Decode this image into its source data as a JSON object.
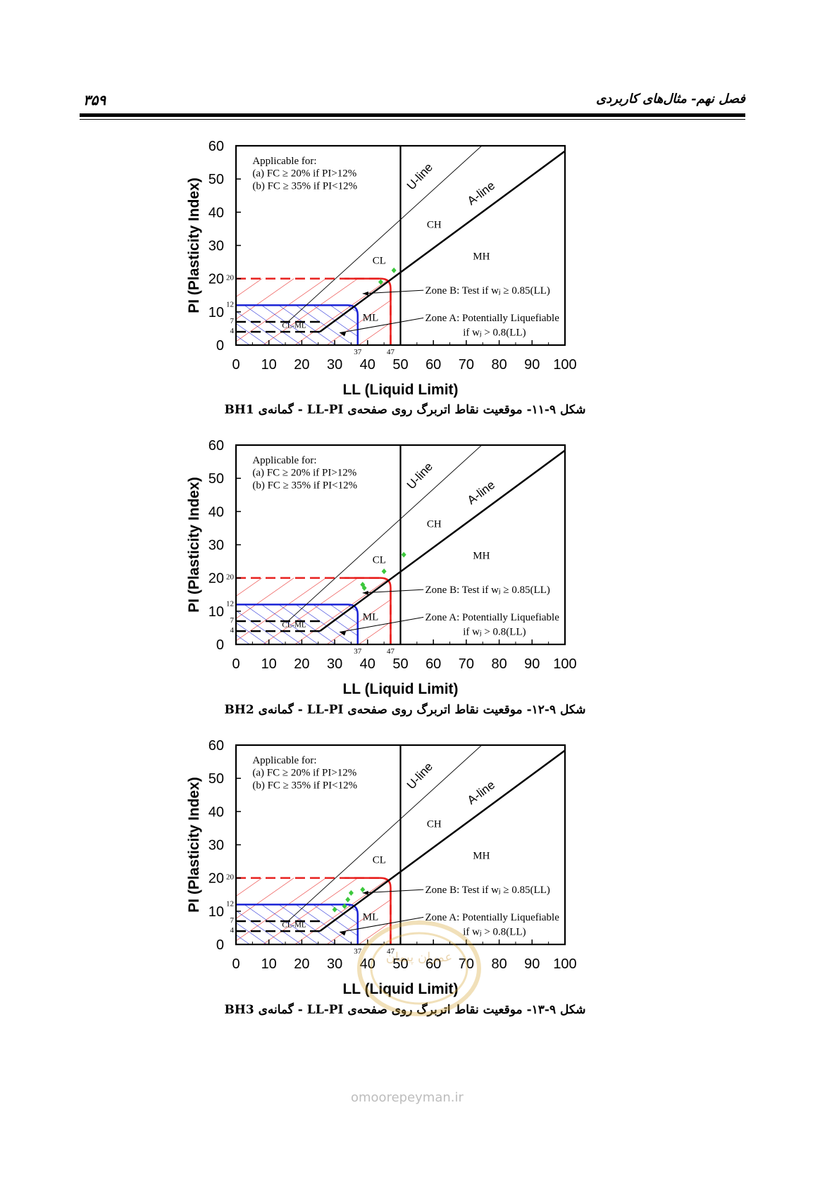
{
  "header": {
    "page_number": "۳۵۹",
    "chapter_title": "فصل نهم- مثال‌های کاربردی"
  },
  "figures": [
    {
      "caption": "شکل ۹-۱۱- موقعیت نقاط اتربرگ روی صفحه‌ی LL-PI - گمانه‌ی BH1",
      "points": [
        [
          44,
          19
        ],
        [
          48,
          22.5
        ]
      ]
    },
    {
      "caption": "شکل ۹-۱۲- موقعیت نقاط اتربرگ روی صفحه‌ی LL-PI - گمانه‌ی BH2",
      "points": [
        [
          39,
          17
        ],
        [
          38.5,
          18
        ],
        [
          45,
          22
        ],
        [
          51,
          27
        ]
      ]
    },
    {
      "caption": "شکل ۹-۱۳- موقعیت نقاط اتربرگ روی صفحه‌ی LL-PI - گمانه‌ی BH3",
      "points": [
        [
          30,
          10.5
        ],
        [
          33,
          11.5
        ],
        [
          34,
          13.5
        ],
        [
          35,
          15.5
        ],
        [
          38.5,
          16.5
        ]
      ]
    }
  ],
  "chart_data": {
    "type": "scatter",
    "xlabel": "LL (Liquid Limit)",
    "ylabel": "PI (Plasticity Index)",
    "xlim": [
      0,
      100
    ],
    "ylim": [
      0,
      60
    ],
    "xticks": [
      "0",
      "10",
      "20",
      "30",
      "40",
      "50",
      "60",
      "70",
      "80",
      "90",
      "100"
    ],
    "yticks": [
      "0",
      "10",
      "20",
      "30",
      "40",
      "50",
      "60"
    ],
    "ytick_small": [
      "4",
      "7",
      "12",
      "20"
    ],
    "xtick_small": [
      "37",
      "47"
    ],
    "applicable": {
      "title": "Applicable for:",
      "a": "(a)    FC ≥ 20% if PI>12%",
      "b": "(b)    FC ≥ 35% if PI<12%"
    },
    "zone_b": "Zone B: Test if wⱼ ≥ 0.85(LL)",
    "zone_a_1": "Zone A: Potentially Liquefiable",
    "zone_a_2": "if wⱼ > 0.8(LL)",
    "regions": {
      "ch": "CH",
      "mh": "MH",
      "cl": "CL",
      "ml": "ML",
      "clml": "CL-ML"
    },
    "u_line": "U-line",
    "a_line": "A-line",
    "colors": {
      "zone_b": "#e8201e",
      "zone_a": "#1a23d6",
      "points": "#3cc83c"
    }
  },
  "watermark": {
    "seal_text": "عمران پیمان",
    "site": "omoorepeyman.ir"
  }
}
